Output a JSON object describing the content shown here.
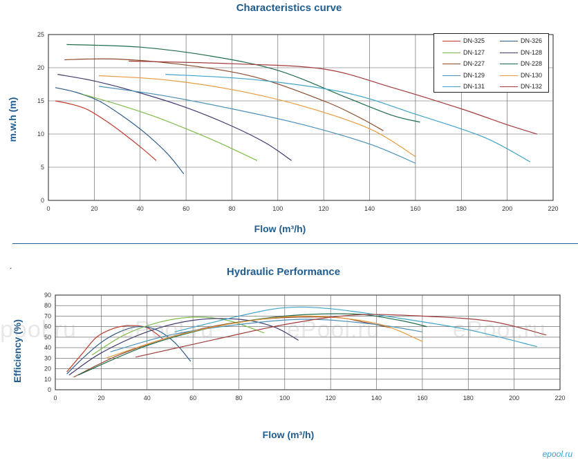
{
  "chart_data": [
    {
      "type": "line",
      "title": "Characteristics curve",
      "xlabel": "Flow (m³/h)",
      "ylabel": "m.w.h (m)",
      "xlim": [
        0,
        220
      ],
      "ylim": [
        0,
        25
      ],
      "xticks": [
        0,
        20,
        40,
        60,
        80,
        100,
        120,
        140,
        160,
        180,
        200,
        220
      ],
      "yticks": [
        0,
        5,
        10,
        15,
        20,
        25
      ],
      "grid": true,
      "legend_position": "top-right",
      "series": [
        {
          "name": "DN-325",
          "color": "#c0392b",
          "points": [
            [
              3,
              15
            ],
            [
              10,
              14.5
            ],
            [
              17,
              13.7
            ],
            [
              25,
              12
            ],
            [
              33,
              10
            ],
            [
              41,
              7.8
            ],
            [
              47,
              6
            ]
          ]
        },
        {
          "name": "DN-326",
          "color": "#2e5a88",
          "points": [
            [
              3,
              17
            ],
            [
              12,
              16.3
            ],
            [
              22,
              15
            ],
            [
              32,
              12.8
            ],
            [
              42,
              10.2
            ],
            [
              52,
              7
            ],
            [
              59,
              4
            ]
          ]
        },
        {
          "name": "DN-127",
          "color": "#7dbb4a",
          "points": [
            [
              15,
              16
            ],
            [
              30,
              14.5
            ],
            [
              45,
              12.8
            ],
            [
              60,
              10.8
            ],
            [
              75,
              8.6
            ],
            [
              91,
              6
            ]
          ]
        },
        {
          "name": "DN-128",
          "color": "#3d3a6e",
          "points": [
            [
              4,
              19
            ],
            [
              20,
              18
            ],
            [
              40,
              16.2
            ],
            [
              60,
              14
            ],
            [
              80,
              11.2
            ],
            [
              95,
              8.6
            ],
            [
              106,
              6
            ]
          ]
        },
        {
          "name": "DN-227",
          "color": "#8b4a2b",
          "points": [
            [
              7,
              21.2
            ],
            [
              30,
              21.3
            ],
            [
              60,
              20.4
            ],
            [
              90,
              18.6
            ],
            [
              120,
              15
            ],
            [
              135,
              12.6
            ],
            [
              146,
              10.5
            ]
          ]
        },
        {
          "name": "DN-228",
          "color": "#1e6b4a",
          "points": [
            [
              8,
              23.5
            ],
            [
              40,
              23.1
            ],
            [
              70,
              21.8
            ],
            [
              100,
              19.6
            ],
            [
              130,
              15.5
            ],
            [
              150,
              12.8
            ],
            [
              162,
              11.8
            ]
          ]
        },
        {
          "name": "DN-129",
          "color": "#4a90b8",
          "points": [
            [
              22,
              17.2
            ],
            [
              50,
              15.8
            ],
            [
              80,
              13.8
            ],
            [
              110,
              11.5
            ],
            [
              140,
              8.5
            ],
            [
              160,
              5.6
            ]
          ]
        },
        {
          "name": "DN-130",
          "color": "#e89a3c",
          "points": [
            [
              22,
              18.8
            ],
            [
              50,
              18.2
            ],
            [
              80,
              16.7
            ],
            [
              110,
              14.3
            ],
            [
              140,
              10.8
            ],
            [
              160,
              6.6
            ]
          ]
        },
        {
          "name": "DN-131",
          "color": "#3fa3c9",
          "points": [
            [
              51,
              19
            ],
            [
              90,
              18.2
            ],
            [
              130,
              16.2
            ],
            [
              160,
              13
            ],
            [
              190,
              9.5
            ],
            [
              210,
              5.8
            ]
          ]
        },
        {
          "name": "DN-132",
          "color": "#a33a3a",
          "points": [
            [
              35,
              21
            ],
            [
              80,
              20.6
            ],
            [
              120,
              19.8
            ],
            [
              150,
              17
            ],
            [
              180,
              13.8
            ],
            [
              200,
              11.4
            ],
            [
              213,
              10
            ]
          ]
        }
      ]
    },
    {
      "type": "line",
      "title": "Hydraulic Performance",
      "xlabel": "Flow (m³/h)",
      "ylabel": "Efficiency (%)",
      "xlim": [
        0,
        220
      ],
      "ylim": [
        0,
        90
      ],
      "xticks": [
        0,
        20,
        40,
        60,
        80,
        100,
        120,
        140,
        160,
        180,
        200,
        220
      ],
      "yticks": [
        0,
        10,
        20,
        30,
        40,
        50,
        60,
        70,
        80,
        90
      ],
      "grid": true,
      "series": [
        {
          "name": "DN-325",
          "color": "#c0392b",
          "points": [
            [
              5,
              17
            ],
            [
              12,
              35
            ],
            [
              18,
              50
            ],
            [
              25,
              58
            ],
            [
              32,
              61
            ],
            [
              40,
              59
            ],
            [
              47,
              48
            ]
          ]
        },
        {
          "name": "DN-326",
          "color": "#2e5a88",
          "points": [
            [
              5,
              15
            ],
            [
              12,
              30
            ],
            [
              20,
              45
            ],
            [
              28,
              55
            ],
            [
              36,
              60
            ],
            [
              44,
              57
            ],
            [
              52,
              45
            ],
            [
              59,
              27
            ]
          ]
        },
        {
          "name": "DN-127",
          "color": "#7dbb4a",
          "points": [
            [
              16,
              33
            ],
            [
              30,
              52
            ],
            [
              45,
              64
            ],
            [
              60,
              69
            ],
            [
              75,
              66
            ],
            [
              91,
              54
            ]
          ]
        },
        {
          "name": "DN-128",
          "color": "#3d3a6e",
          "points": [
            [
              6,
              14
            ],
            [
              20,
              35
            ],
            [
              40,
              55
            ],
            [
              60,
              66
            ],
            [
              80,
              67
            ],
            [
              95,
              60
            ],
            [
              106,
              47
            ]
          ]
        },
        {
          "name": "DN-227",
          "color": "#8b4a2b",
          "points": [
            [
              8,
              12
            ],
            [
              30,
              35
            ],
            [
              60,
              56
            ],
            [
              90,
              67
            ],
            [
              120,
              69
            ],
            [
              135,
              64
            ],
            [
              146,
              59
            ]
          ]
        },
        {
          "name": "DN-228",
          "color": "#1e6b4a",
          "points": [
            [
              10,
              14
            ],
            [
              40,
              42
            ],
            [
              70,
              60
            ],
            [
              100,
              70
            ],
            [
              130,
              72
            ],
            [
              150,
              66
            ],
            [
              162,
              60
            ]
          ]
        },
        {
          "name": "DN-129",
          "color": "#4a90b8",
          "points": [
            [
              24,
              36
            ],
            [
              50,
              52
            ],
            [
              80,
              62
            ],
            [
              110,
              67
            ],
            [
              140,
              62
            ],
            [
              160,
              55
            ]
          ]
        },
        {
          "name": "DN-130",
          "color": "#e89a3c",
          "points": [
            [
              22,
              30
            ],
            [
              50,
              50
            ],
            [
              80,
              64
            ],
            [
              110,
              70
            ],
            [
              140,
              63
            ],
            [
              160,
              46
            ]
          ]
        },
        {
          "name": "DN-131",
          "color": "#3fa3c9",
          "points": [
            [
              52,
              55
            ],
            [
              80,
              70
            ],
            [
              100,
              78
            ],
            [
              120,
              77
            ],
            [
              150,
              68
            ],
            [
              180,
              57
            ],
            [
              210,
              41
            ]
          ]
        },
        {
          "name": "DN-132",
          "color": "#a33a3a",
          "points": [
            [
              35,
              31
            ],
            [
              70,
              48
            ],
            [
              100,
              62
            ],
            [
              130,
              71
            ],
            [
              160,
              70
            ],
            [
              190,
              65
            ],
            [
              214,
              52
            ]
          ]
        }
      ]
    }
  ],
  "watermark": {
    "texts": [
      "pool.ru",
      "ePool.ru",
      "ePool.ru",
      "ePool.ru"
    ]
  },
  "logo": {
    "text": "epool.ru"
  }
}
